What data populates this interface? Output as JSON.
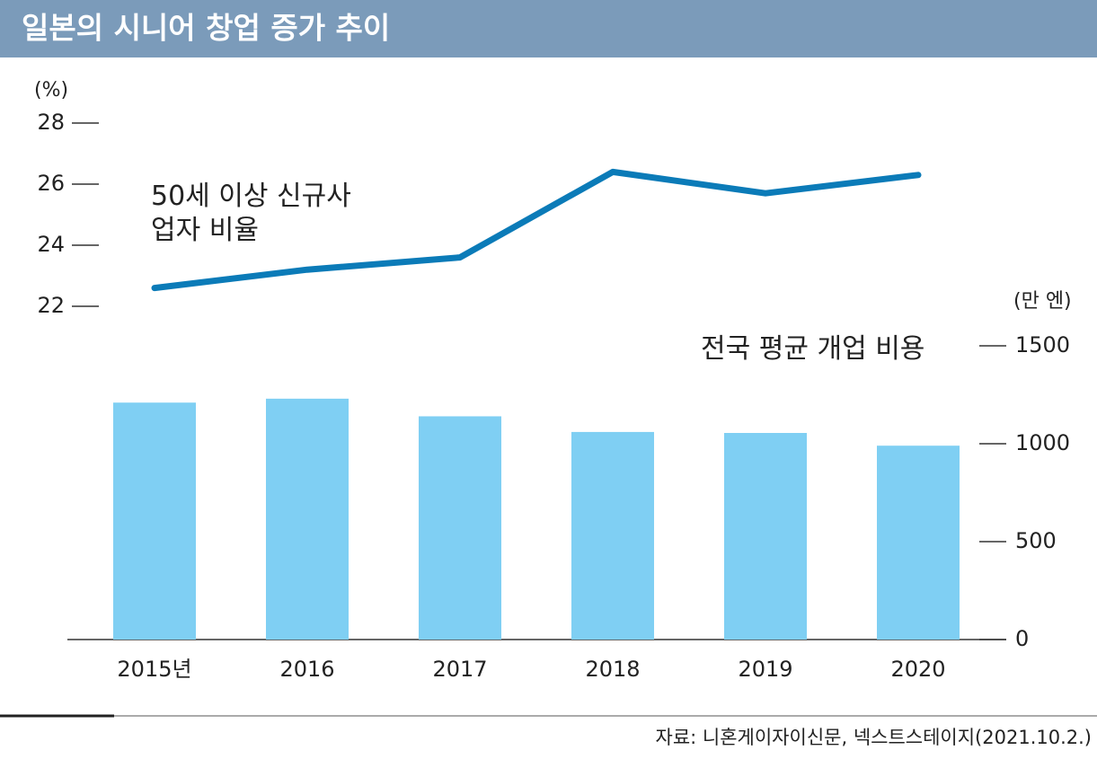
{
  "chart_data": {
    "type": "bar",
    "title": "일본의 시니어 창업 증가 추이",
    "y_label": "(%)",
    "y2_label": "(만 엔)",
    "source": "자료: 니혼게이자이신문, 넥스트스테이지(2021.10.2.)",
    "categories": [
      "2015년",
      "2016",
      "2017",
      "2018",
      "2019",
      "2020"
    ],
    "series": [
      {
        "name": "전국 평균 개업 비용",
        "type": "bar",
        "axis": "y2",
        "color": "#7fcff3",
        "values": [
          1210,
          1230,
          1140,
          1060,
          1055,
          990
        ]
      },
      {
        "name": "50세 이상 신규사업자 비율",
        "type": "line",
        "color": "#0b7bb8",
        "values": [
          22.6,
          23.2,
          23.6,
          26.4,
          25.7,
          26.3
        ]
      }
    ],
    "ylim": [
      22,
      28
    ],
    "yticks": [
      22,
      24,
      26,
      28
    ],
    "y2lim": [
      0,
      1500
    ],
    "y2ticks": [
      0,
      500,
      1000,
      1500
    ]
  }
}
